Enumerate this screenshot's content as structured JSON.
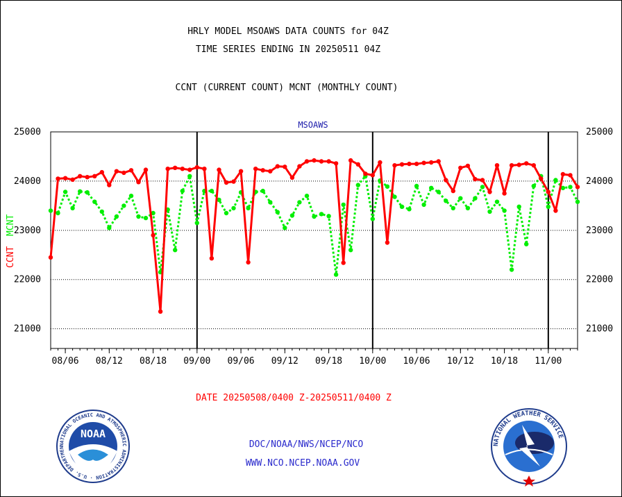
{
  "header": {
    "line1": "HRLY MODEL MSOAWS DATA COUNTS for 04Z",
    "line2": "TIME SERIES ENDING IN 20250511 04Z",
    "line3": "CCNT (CURRENT COUNT) MCNT (MONTHLY COUNT)"
  },
  "footer": {
    "date_range": "DATE 20250508/0400 Z-20250511/0400 Z",
    "org_path": "DOC/NOAA/NWS/NCEP/NCO",
    "website": "WWW.NCO.NCEP.NOAA.GOV"
  },
  "logos": {
    "left_text": "NOAA",
    "left_ring": "NATIONAL OCEANIC AND ATMOSPHERIC ADMINISTRATION · U.S. DEPARTMENT OF COMMERCE",
    "right_ring": "NATIONAL WEATHER SERVICE"
  },
  "colors": {
    "ccnt": "#ff0000",
    "mcnt": "#00ee00",
    "axis_label": "#1a1aaa"
  },
  "chart_data": {
    "type": "line",
    "title": "MSOAWS",
    "xlabel": "",
    "ylabel_left": "CCNT",
    "ylabel_right": "MCNT",
    "ylim": [
      20600,
      25000
    ],
    "yticks": [
      21000,
      22000,
      23000,
      24000,
      25000
    ],
    "x_tick_labels": [
      "08/06",
      "08/12",
      "08/18",
      "09/00",
      "09/06",
      "09/12",
      "09/18",
      "10/00",
      "10/06",
      "10/12",
      "10/18",
      "11/00"
    ],
    "x_ticks": [
      2,
      8,
      14,
      20,
      26,
      32,
      38,
      44,
      50,
      56,
      62,
      68
    ],
    "x_range": [
      0,
      72
    ],
    "day_separators": [
      20,
      44,
      68
    ],
    "series": [
      {
        "name": "CCNT",
        "color": "#ff0000",
        "style": "solid",
        "x": [
          0,
          1,
          2,
          3,
          4,
          5,
          6,
          7,
          8,
          9,
          10,
          11,
          12,
          13,
          14,
          15,
          16,
          17,
          18,
          19,
          20,
          21,
          22,
          23,
          24,
          25,
          26,
          27,
          28,
          29,
          30,
          31,
          32,
          33,
          34,
          35,
          36,
          37,
          38,
          39,
          40,
          41,
          42,
          43,
          44,
          45,
          46,
          47,
          48,
          49,
          50,
          51,
          52,
          53,
          54,
          55,
          56,
          57,
          58,
          59,
          60,
          61,
          62,
          63,
          64,
          65,
          66,
          67,
          68,
          69,
          70,
          71,
          72
        ],
        "values": [
          22450,
          24050,
          24060,
          24030,
          24100,
          24080,
          24100,
          24180,
          23920,
          24200,
          24170,
          24220,
          23980,
          24230,
          22900,
          21350,
          24250,
          24270,
          24250,
          24230,
          24280,
          24250,
          22430,
          24230,
          23970,
          23990,
          24200,
          22350,
          24250,
          24220,
          24200,
          24300,
          24290,
          24070,
          24300,
          24400,
          24420,
          24400,
          24400,
          24360,
          22340,
          24420,
          24340,
          24150,
          24120,
          24380,
          22750,
          24320,
          24340,
          24350,
          24350,
          24370,
          24380,
          24400,
          24020,
          23800,
          24270,
          24310,
          24040,
          24020,
          23780,
          24320,
          23750,
          24320,
          24330,
          24360,
          24320,
          24050,
          23780,
          23400,
          24140,
          24120,
          23880
        ]
      },
      {
        "name": "MCNT",
        "color": "#00ee00",
        "style": "dotted",
        "x": [
          0,
          1,
          2,
          3,
          4,
          5,
          6,
          7,
          8,
          9,
          10,
          11,
          12,
          13,
          14,
          15,
          16,
          17,
          18,
          19,
          20,
          21,
          22,
          23,
          24,
          25,
          26,
          27,
          28,
          29,
          30,
          31,
          32,
          33,
          34,
          35,
          36,
          37,
          38,
          39,
          40,
          41,
          42,
          43,
          44,
          45,
          46,
          47,
          48,
          49,
          50,
          51,
          52,
          53,
          54,
          55,
          56,
          57,
          58,
          59,
          60,
          61,
          62,
          63,
          64,
          65,
          66,
          67,
          68,
          69,
          70,
          71,
          72
        ],
        "values": [
          23400,
          23350,
          23780,
          23450,
          23790,
          23770,
          23580,
          23380,
          23050,
          23280,
          23500,
          23700,
          23280,
          23250,
          23350,
          22150,
          23420,
          22600,
          23800,
          24100,
          23150,
          23800,
          23800,
          23620,
          23350,
          23450,
          23770,
          23450,
          23780,
          23800,
          23570,
          23370,
          23050,
          23300,
          23570,
          23700,
          23280,
          23330,
          23290,
          22100,
          23520,
          22600,
          23920,
          24100,
          23230,
          24010,
          23890,
          23680,
          23480,
          23430,
          23900,
          23520,
          23860,
          23780,
          23600,
          23450,
          23650,
          23450,
          23650,
          23880,
          23380,
          23580,
          23400,
          22200,
          23480,
          22720,
          23900,
          24100,
          23480,
          24020,
          23860,
          23880,
          23580
        ]
      }
    ]
  }
}
